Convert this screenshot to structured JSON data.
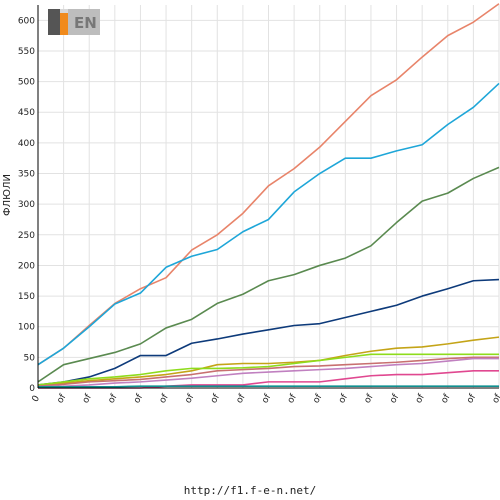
{
  "footer": {
    "url": "http://f1.f-e-n.net/"
  },
  "logo": {
    "text": "F1EN"
  },
  "chart_data": {
    "type": "line",
    "title": "",
    "xlabel": "",
    "ylabel": "ФЛЮЛИ",
    "ylim": [
      0,
      625
    ],
    "yticks": [
      0,
      50,
      100,
      150,
      200,
      250,
      300,
      350,
      400,
      450,
      500,
      550,
      600
    ],
    "x": [
      0,
      1,
      2,
      3,
      4,
      5,
      6,
      7,
      8,
      9,
      10,
      11,
      12,
      13,
      14,
      15,
      16,
      17,
      18
    ],
    "xtick_labels": [
      "0",
      "of",
      "of",
      "of",
      "of",
      "of",
      "of",
      "of",
      "of",
      "of",
      "of",
      "of",
      "of",
      "of",
      "of",
      "of",
      "of",
      "of",
      "of"
    ],
    "grid": true,
    "legend": "none",
    "series": [
      {
        "color": "#e8846a",
        "values": [
          38,
          65,
          102,
          138,
          162,
          180,
          225,
          250,
          285,
          330,
          358,
          393,
          435,
          477,
          503,
          540,
          575,
          597,
          627
        ]
      },
      {
        "color": "#1ea6d8",
        "values": [
          38,
          65,
          100,
          137,
          155,
          197,
          215,
          226,
          255,
          275,
          320,
          350,
          375,
          375,
          387,
          397,
          430,
          458,
          497
        ]
      },
      {
        "color": "#5a8a50",
        "values": [
          10,
          38,
          48,
          58,
          72,
          98,
          112,
          138,
          153,
          175,
          185,
          200,
          212,
          232,
          270,
          305,
          318,
          342,
          360
        ]
      },
      {
        "color": "#0d3a7a",
        "values": [
          5,
          10,
          18,
          32,
          53,
          53,
          73,
          80,
          88,
          95,
          102,
          105,
          115,
          125,
          135,
          150,
          162,
          175,
          177
        ]
      },
      {
        "color": "#c4a417",
        "values": [
          3,
          8,
          12,
          15,
          18,
          22,
          28,
          38,
          40,
          40,
          42,
          45,
          53,
          60,
          65,
          67,
          72,
          78,
          83
        ]
      },
      {
        "color": "#8edc1c",
        "values": [
          5,
          10,
          15,
          18,
          22,
          28,
          32,
          32,
          33,
          35,
          40,
          45,
          50,
          55,
          55,
          55,
          55,
          55,
          55
        ]
      },
      {
        "color": "#c87070",
        "values": [
          3,
          6,
          10,
          12,
          14,
          18,
          22,
          28,
          30,
          32,
          35,
          36,
          38,
          40,
          42,
          45,
          48,
          50,
          50
        ]
      },
      {
        "color": "#c080c0",
        "values": [
          2,
          3,
          5,
          8,
          10,
          13,
          16,
          20,
          24,
          26,
          28,
          30,
          32,
          35,
          38,
          40,
          44,
          48,
          48
        ]
      },
      {
        "color": "#e04890",
        "values": [
          0,
          0,
          0,
          0,
          0,
          3,
          5,
          5,
          5,
          10,
          10,
          10,
          15,
          20,
          22,
          22,
          25,
          28,
          28
        ]
      },
      {
        "color": "#109090",
        "values": [
          2,
          2,
          2,
          2,
          3,
          3,
          3,
          3,
          3,
          3,
          3,
          3,
          3,
          3,
          3,
          3,
          3,
          3,
          3
        ]
      }
    ]
  }
}
